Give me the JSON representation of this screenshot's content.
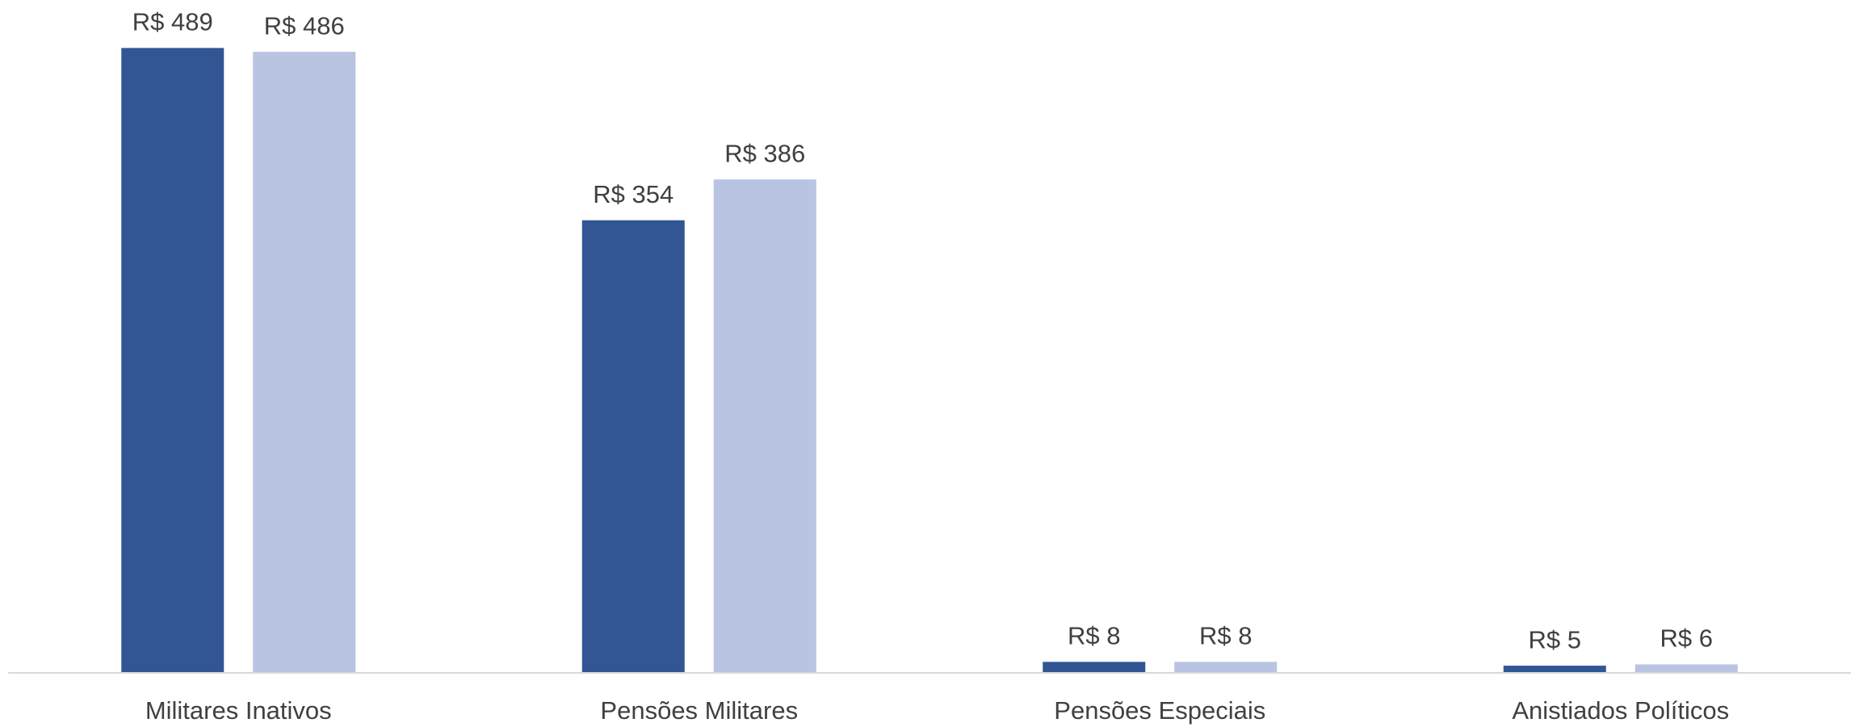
{
  "chart_data": {
    "type": "bar",
    "categories": [
      "Militares Inativos",
      "Pensões Militares",
      "Pensões Especiais",
      "Anistiados Políticos"
    ],
    "series": [
      {
        "color": "#325593",
        "values": [
          489,
          354,
          8,
          5
        ],
        "value_labels": [
          "R$ 489",
          "R$ 354",
          "R$ 8",
          "R$ 5"
        ]
      },
      {
        "color": "#b9c4e2",
        "values": [
          486,
          386,
          8,
          6
        ],
        "value_labels": [
          "R$ 486",
          "R$ 386",
          "R$ 8",
          "R$ 6"
        ]
      }
    ],
    "ylim": [
      0,
      500
    ]
  }
}
